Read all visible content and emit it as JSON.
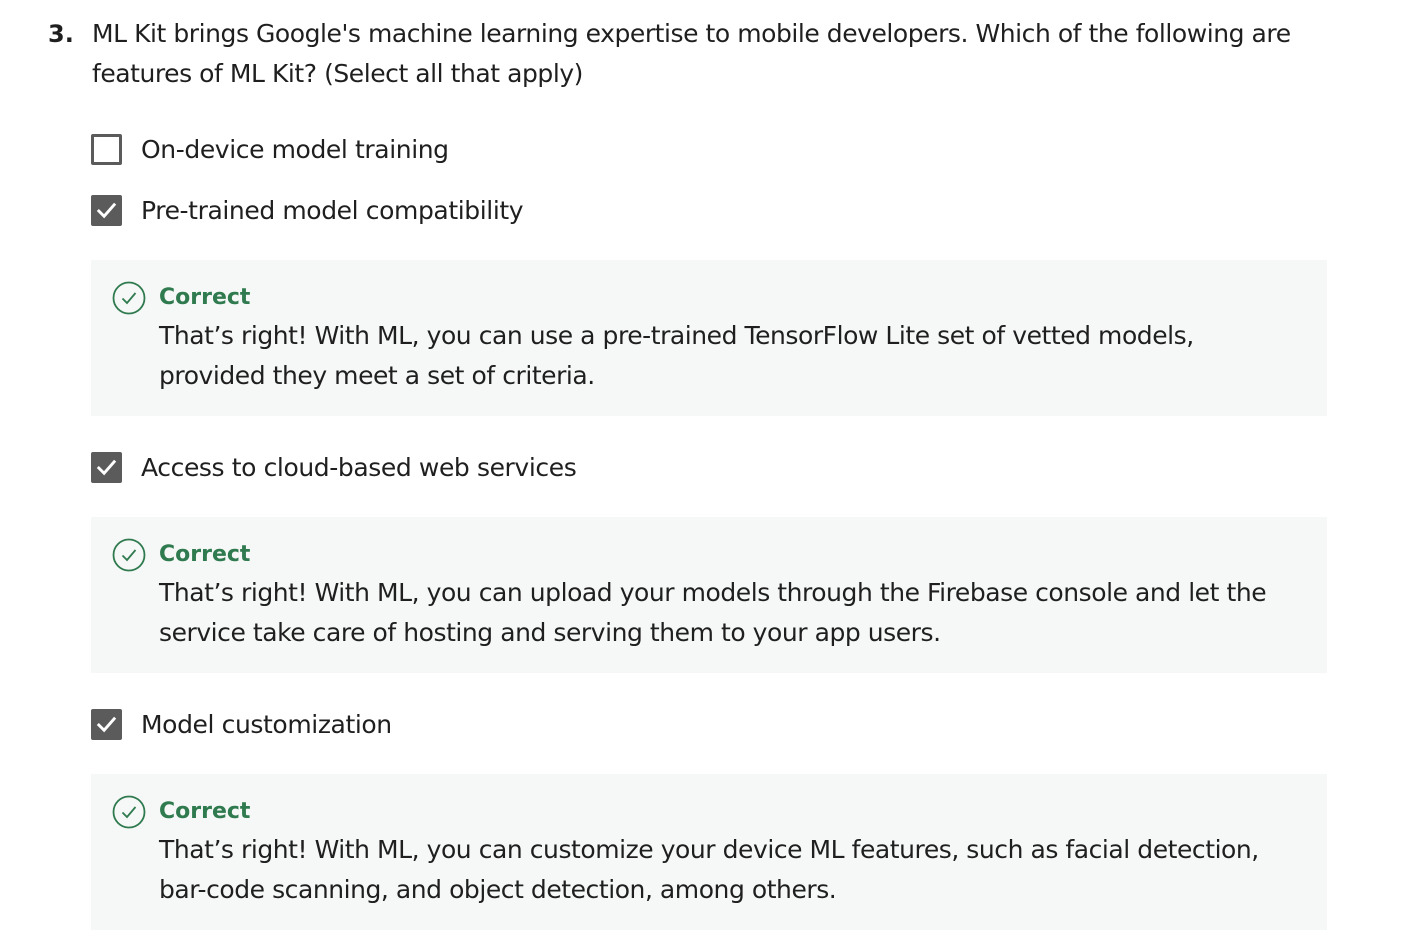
{
  "question": {
    "number": "3.",
    "text": "ML Kit brings Google's machine learning expertise to mobile developers. Which of the following are features of ML Kit? (Select all that apply)"
  },
  "options": [
    {
      "label": "On-device model training",
      "checked": false
    },
    {
      "label": "Pre-trained model compatibility",
      "checked": true,
      "feedback": {
        "title": "Correct",
        "text": "That’s right! With ML, you can use a pre-trained TensorFlow Lite set of vetted models, provided they meet a set of criteria."
      }
    },
    {
      "label": "Access to cloud-based web services",
      "checked": true,
      "feedback": {
        "title": "Correct",
        "text": "That’s right! With ML, you can upload your models through the Firebase console and let the service take care of hosting and serving them to your app users."
      }
    },
    {
      "label": "Model customization",
      "checked": true,
      "feedback": {
        "title": "Correct",
        "text": "That’s right! With ML, you can customize your device ML features, such as facial detection, bar-code scanning, and object detection, among others."
      }
    }
  ],
  "icons": {
    "checkbox_checked": "checkmark-icon",
    "feedback": "check-circle-icon"
  },
  "colors": {
    "correct": "#2f7a4e",
    "checkbox": "#5b5b5b",
    "feedback_bg": "#f6f8f7"
  }
}
